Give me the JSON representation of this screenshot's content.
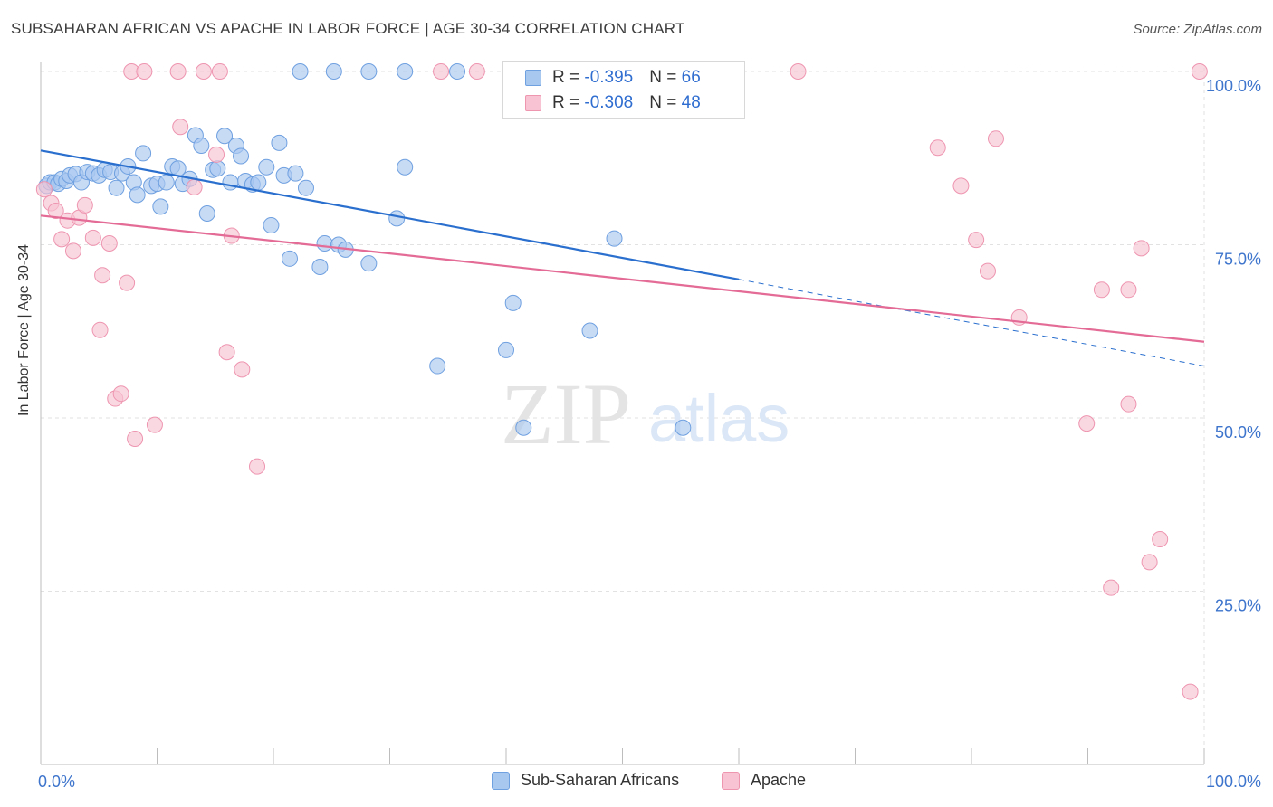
{
  "header": {
    "title": "SUBSAHARAN AFRICAN VS APACHE IN LABOR FORCE | AGE 30-34 CORRELATION CHART",
    "source": "Source: ZipAtlas.com"
  },
  "watermark": {
    "zip": "ZIP",
    "atlas": "atlas"
  },
  "legend": {
    "rows": [
      {
        "r_label": "R = ",
        "r_value": "-0.395",
        "n_label": "N = ",
        "n_value": "66"
      },
      {
        "r_label": "R = ",
        "r_value": "-0.308",
        "n_label": "N = ",
        "n_value": "48"
      }
    ]
  },
  "bottom_legend": {
    "series1": "Sub-Saharan Africans",
    "series2": "Apache"
  },
  "colors": {
    "blue_fill": "#a9c8f0",
    "blue_stroke": "#6fa0e0",
    "blue_line": "#2a6fce",
    "pink_fill": "#f8c3d3",
    "pink_stroke": "#ee95b0",
    "pink_line": "#e36b95",
    "tick_label": "#3d74cc"
  },
  "chart_data": {
    "type": "scatter",
    "title": "SUBSAHARAN AFRICAN VS APACHE IN LABOR FORCE | AGE 30-34 CORRELATION CHART",
    "xlabel": "",
    "ylabel": "In Labor Force | Age 30-34",
    "xlim": [
      0,
      100
    ],
    "ylim": [
      0,
      102
    ],
    "x_tick_labels": [
      "0.0%",
      "100.0%"
    ],
    "y_ticks": [
      25,
      50,
      75,
      100
    ],
    "y_tick_labels": [
      "25.0%",
      "50.0%",
      "75.0%",
      "100.0%"
    ],
    "grid": true,
    "legend_position": "top-center",
    "series": [
      {
        "name": "Sub-Saharan Africans",
        "color": "#a9c8f0",
        "points": [
          [
            0.5,
            83.5
          ],
          [
            0.8,
            84
          ],
          [
            1.2,
            84
          ],
          [
            1.5,
            83.8
          ],
          [
            1.8,
            84.5
          ],
          [
            2.2,
            84.2
          ],
          [
            2.5,
            85
          ],
          [
            3,
            85.2
          ],
          [
            3.5,
            84
          ],
          [
            4,
            85.5
          ],
          [
            4.5,
            85.3
          ],
          [
            5,
            85
          ],
          [
            5.5,
            85.8
          ],
          [
            6,
            85.5
          ],
          [
            6.5,
            83.2
          ],
          [
            7,
            85.3
          ],
          [
            7.5,
            86.3
          ],
          [
            8,
            84
          ],
          [
            8.3,
            82.2
          ],
          [
            8.8,
            88.2
          ],
          [
            9.5,
            83.5
          ],
          [
            10,
            83.8
          ],
          [
            10.3,
            80.5
          ],
          [
            10.8,
            84
          ],
          [
            11.3,
            86.3
          ],
          [
            11.8,
            86
          ],
          [
            12.2,
            83.8
          ],
          [
            12.8,
            84.5
          ],
          [
            13.3,
            90.8
          ],
          [
            13.8,
            89.3
          ],
          [
            14.3,
            79.5
          ],
          [
            14.8,
            85.8
          ],
          [
            15.2,
            86
          ],
          [
            15.8,
            90.7
          ],
          [
            16.3,
            84
          ],
          [
            16.8,
            89.3
          ],
          [
            17.2,
            87.8
          ],
          [
            17.6,
            84.2
          ],
          [
            18.2,
            83.7
          ],
          [
            18.7,
            84
          ],
          [
            19.4,
            86.2
          ],
          [
            19.8,
            77.8
          ],
          [
            20.5,
            89.7
          ],
          [
            20.9,
            85
          ],
          [
            21.4,
            73
          ],
          [
            21.9,
            85.3
          ],
          [
            22.8,
            83.2
          ],
          [
            24,
            71.8
          ],
          [
            24.4,
            75.2
          ],
          [
            25.6,
            75
          ],
          [
            26.2,
            74.3
          ],
          [
            28.2,
            72.3
          ],
          [
            30.6,
            78.8
          ],
          [
            31.3,
            86.2
          ],
          [
            34.1,
            57.5
          ],
          [
            40,
            59.8
          ],
          [
            40.6,
            66.6
          ],
          [
            41.5,
            48.6
          ],
          [
            47.2,
            62.6
          ],
          [
            49.3,
            75.9
          ],
          [
            55.2,
            48.6
          ],
          [
            28.2,
            100
          ],
          [
            31.3,
            100
          ],
          [
            22.3,
            100
          ],
          [
            25.2,
            100
          ],
          [
            35.8,
            100
          ],
          [
            43.2,
            100
          ]
        ]
      },
      {
        "name": "Apache",
        "color": "#f8c3d3",
        "points": [
          [
            0.3,
            83
          ],
          [
            0.9,
            81
          ],
          [
            1.3,
            79.9
          ],
          [
            1.8,
            75.8
          ],
          [
            2.3,
            78.5
          ],
          [
            2.8,
            74.1
          ],
          [
            3.3,
            78.9
          ],
          [
            3.8,
            80.7
          ],
          [
            4.5,
            76
          ],
          [
            5.3,
            70.6
          ],
          [
            5.9,
            75.2
          ],
          [
            5.1,
            62.7
          ],
          [
            6.4,
            52.8
          ],
          [
            6.9,
            53.5
          ],
          [
            7.4,
            69.5
          ],
          [
            8.1,
            47
          ],
          [
            9.8,
            49
          ],
          [
            12,
            92
          ],
          [
            13.2,
            83.3
          ],
          [
            15.1,
            88
          ],
          [
            16,
            59.5
          ],
          [
            16.4,
            76.3
          ],
          [
            17.3,
            57
          ],
          [
            18.6,
            43
          ],
          [
            7.8,
            100
          ],
          [
            8.9,
            100
          ],
          [
            11.8,
            100
          ],
          [
            14,
            100
          ],
          [
            15.4,
            100
          ],
          [
            34.4,
            100
          ],
          [
            37.5,
            100
          ],
          [
            65.1,
            100
          ],
          [
            77.1,
            89
          ],
          [
            79.1,
            83.5
          ],
          [
            80.4,
            75.7
          ],
          [
            81.4,
            71.2
          ],
          [
            82.1,
            90.3
          ],
          [
            84.1,
            64.5
          ],
          [
            89.9,
            49.2
          ],
          [
            91.2,
            68.5
          ],
          [
            92,
            25.5
          ],
          [
            93.5,
            52
          ],
          [
            93.5,
            68.5
          ],
          [
            94.6,
            74.5
          ],
          [
            95.3,
            29.2
          ],
          [
            96.2,
            32.5
          ],
          [
            98.8,
            10.5
          ],
          [
            99.6,
            100
          ]
        ]
      }
    ],
    "trendlines": [
      {
        "series": "Sub-Saharan Africans",
        "x": [
          0,
          60,
          100
        ],
        "y": [
          88.6,
          70,
          57.5
        ],
        "dashed_from_x": 60
      },
      {
        "series": "Apache",
        "x": [
          0,
          100
        ],
        "y": [
          79.2,
          61
        ]
      }
    ]
  }
}
